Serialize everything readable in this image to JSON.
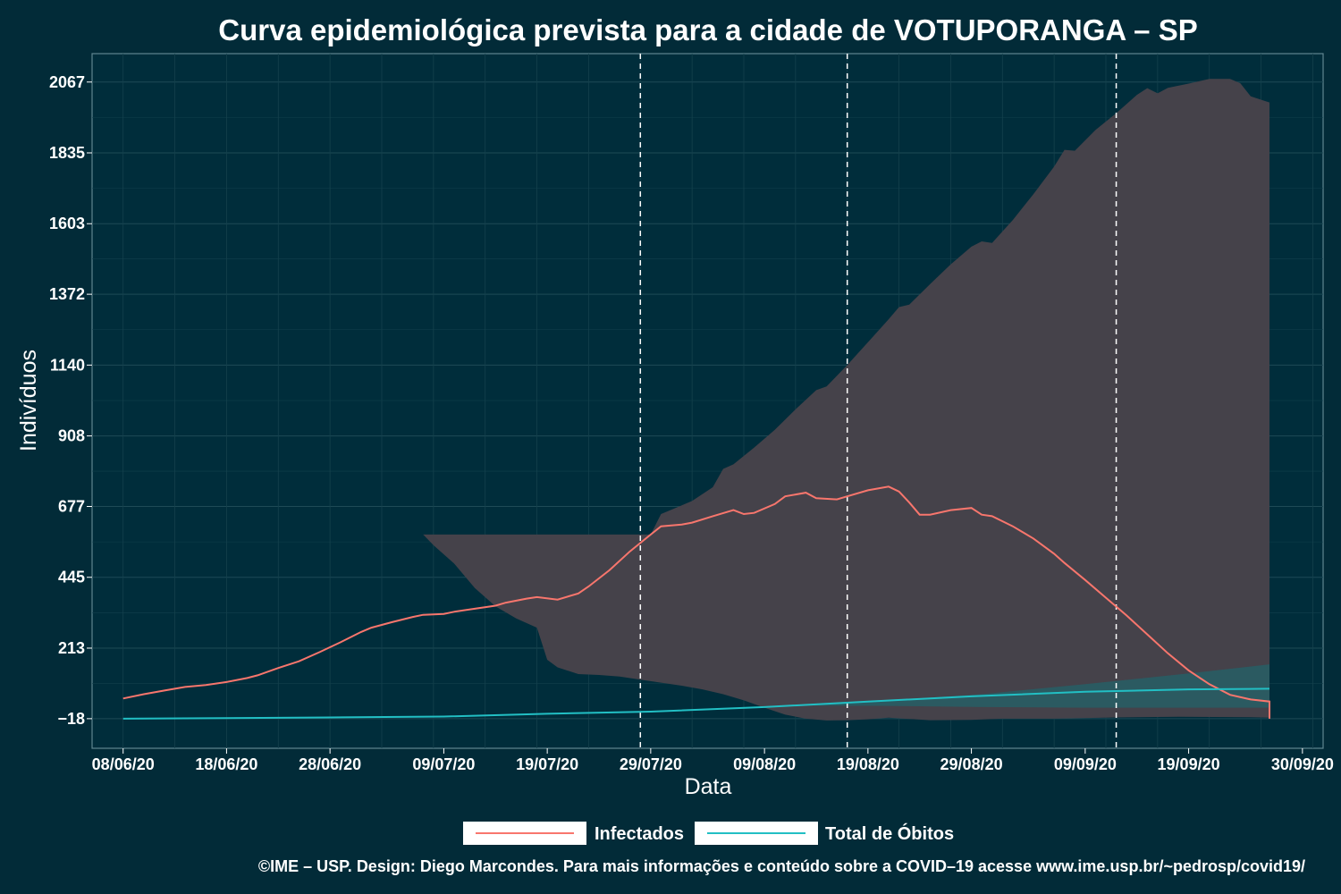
{
  "chart_data": {
    "type": "line",
    "title": "Curva epidemiológica prevista para a cidade de VOTUPORANGA – SP",
    "xlabel": "Data",
    "ylabel": "Indivíduos",
    "x_start": "2020-06-05",
    "x_end": "2020-10-02",
    "ylim": [
      -115,
      2160
    ],
    "grid": true,
    "yticks": [
      {
        "value": -18,
        "label": "−18"
      },
      {
        "value": 213,
        "label": "213"
      },
      {
        "value": 445,
        "label": "445"
      },
      {
        "value": 677,
        "label": "677"
      },
      {
        "value": 908,
        "label": "908"
      },
      {
        "value": 1140,
        "label": "1140"
      },
      {
        "value": 1372,
        "label": "1372"
      },
      {
        "value": 1603,
        "label": "1603"
      },
      {
        "value": 1835,
        "label": "1835"
      },
      {
        "value": 2067,
        "label": "2067"
      }
    ],
    "xticks": [
      {
        "date": "2020-06-08",
        "label": "08/06/20"
      },
      {
        "date": "2020-06-18",
        "label": "18/06/20"
      },
      {
        "date": "2020-06-28",
        "label": "28/06/20"
      },
      {
        "date": "2020-07-09",
        "label": "09/07/20"
      },
      {
        "date": "2020-07-19",
        "label": "19/07/20"
      },
      {
        "date": "2020-07-29",
        "label": "29/07/20"
      },
      {
        "date": "2020-08-09",
        "label": "09/08/20"
      },
      {
        "date": "2020-08-19",
        "label": "19/08/20"
      },
      {
        "date": "2020-08-29",
        "label": "29/08/20"
      },
      {
        "date": "2020-09-09",
        "label": "09/09/20"
      },
      {
        "date": "2020-09-19",
        "label": "19/09/20"
      },
      {
        "date": "2020-09-30",
        "label": "30/09/20"
      }
    ],
    "vlines": [
      "2020-07-28",
      "2020-08-17",
      "2020-09-12"
    ],
    "series": [
      {
        "name": "Infectados",
        "color": "#f8766d",
        "points": [
          [
            "2020-06-08",
            48
          ],
          [
            "2020-06-10",
            62
          ],
          [
            "2020-06-12",
            74
          ],
          [
            "2020-06-14",
            86
          ],
          [
            "2020-06-16",
            92
          ],
          [
            "2020-06-18",
            102
          ],
          [
            "2020-06-20",
            115
          ],
          [
            "2020-06-21",
            124
          ],
          [
            "2020-06-23",
            148
          ],
          [
            "2020-06-25",
            170
          ],
          [
            "2020-06-27",
            200
          ],
          [
            "2020-06-29",
            232
          ],
          [
            "2020-07-01",
            266
          ],
          [
            "2020-07-02",
            280
          ],
          [
            "2020-07-04",
            298
          ],
          [
            "2020-07-06",
            315
          ],
          [
            "2020-07-07",
            322
          ],
          [
            "2020-07-09",
            325
          ],
          [
            "2020-07-10",
            332
          ],
          [
            "2020-07-12",
            342
          ],
          [
            "2020-07-14",
            352
          ],
          [
            "2020-07-15",
            362
          ],
          [
            "2020-07-17",
            375
          ],
          [
            "2020-07-18",
            380
          ],
          [
            "2020-07-20",
            372
          ],
          [
            "2020-07-22",
            392
          ],
          [
            "2020-07-23",
            415
          ],
          [
            "2020-07-25",
            468
          ],
          [
            "2020-07-27",
            530
          ],
          [
            "2020-07-29",
            585
          ],
          [
            "2020-07-30",
            612
          ],
          [
            "2020-08-01",
            618
          ],
          [
            "2020-08-02",
            624
          ],
          [
            "2020-08-04",
            645
          ],
          [
            "2020-08-06",
            665
          ],
          [
            "2020-08-07",
            652
          ],
          [
            "2020-08-08",
            656
          ],
          [
            "2020-08-10",
            685
          ],
          [
            "2020-08-11",
            710
          ],
          [
            "2020-08-13",
            722
          ],
          [
            "2020-08-14",
            704
          ],
          [
            "2020-08-16",
            700
          ],
          [
            "2020-08-17",
            710
          ],
          [
            "2020-08-19",
            730
          ],
          [
            "2020-08-21",
            742
          ],
          [
            "2020-08-22",
            726
          ],
          [
            "2020-08-23",
            690
          ],
          [
            "2020-08-24",
            650
          ],
          [
            "2020-08-25",
            650
          ],
          [
            "2020-08-27",
            665
          ],
          [
            "2020-08-29",
            672
          ],
          [
            "2020-08-30",
            650
          ],
          [
            "2020-08-31",
            645
          ],
          [
            "2020-09-02",
            612
          ],
          [
            "2020-09-04",
            572
          ],
          [
            "2020-09-06",
            522
          ],
          [
            "2020-09-07",
            492
          ],
          [
            "2020-09-09",
            436
          ],
          [
            "2020-09-11",
            378
          ],
          [
            "2020-09-13",
            320
          ],
          [
            "2020-09-15",
            258
          ],
          [
            "2020-09-17",
            196
          ],
          [
            "2020-09-19",
            140
          ],
          [
            "2020-09-21",
            95
          ],
          [
            "2020-09-23",
            60
          ],
          [
            "2020-09-25",
            45
          ],
          [
            "2020-09-27",
            38
          ],
          [
            "2020-09-29",
            20
          ],
          [
            "2020-10-01",
            5
          ],
          [
            "2020-10-03",
            -7
          ],
          [
            "2020-10-06",
            -18
          ]
        ]
      },
      {
        "name": "Total de Óbitos",
        "color": "#22bfc4",
        "points": [
          [
            "2020-06-08",
            -18
          ],
          [
            "2020-06-18",
            -16
          ],
          [
            "2020-06-28",
            -14
          ],
          [
            "2020-07-09",
            -11
          ],
          [
            "2020-07-19",
            -2
          ],
          [
            "2020-07-29",
            5
          ],
          [
            "2020-08-09",
            20
          ],
          [
            "2020-08-19",
            38
          ],
          [
            "2020-08-29",
            55
          ],
          [
            "2020-09-09",
            70
          ],
          [
            "2020-09-19",
            78
          ],
          [
            "2020-09-30",
            80
          ],
          [
            "2020-10-06",
            80
          ]
        ]
      }
    ],
    "bands": [
      {
        "name": "Infectados",
        "color": "#45424a",
        "upper": [
          [
            "2020-07-29",
            585
          ],
          [
            "2020-07-30",
            652
          ],
          [
            "2020-08-02",
            695
          ],
          [
            "2020-08-04",
            740
          ],
          [
            "2020-08-05",
            800
          ],
          [
            "2020-08-06",
            815
          ],
          [
            "2020-08-08",
            870
          ],
          [
            "2020-08-10",
            928
          ],
          [
            "2020-08-12",
            995
          ],
          [
            "2020-08-14",
            1058
          ],
          [
            "2020-08-15",
            1070
          ],
          [
            "2020-08-17",
            1140
          ],
          [
            "2020-08-19",
            1215
          ],
          [
            "2020-08-21",
            1290
          ],
          [
            "2020-08-22",
            1330
          ],
          [
            "2020-08-23",
            1338
          ],
          [
            "2020-08-25",
            1405
          ],
          [
            "2020-08-27",
            1470
          ],
          [
            "2020-08-29",
            1528
          ],
          [
            "2020-08-30",
            1545
          ],
          [
            "2020-08-31",
            1540
          ],
          [
            "2020-09-02",
            1615
          ],
          [
            "2020-09-04",
            1700
          ],
          [
            "2020-09-06",
            1790
          ],
          [
            "2020-09-07",
            1845
          ],
          [
            "2020-09-08",
            1842
          ],
          [
            "2020-09-10",
            1910
          ],
          [
            "2020-09-12",
            1965
          ],
          [
            "2020-09-14",
            2025
          ],
          [
            "2020-09-15",
            2047
          ],
          [
            "2020-09-16",
            2030
          ],
          [
            "2020-09-17",
            2048
          ],
          [
            "2020-09-19",
            2062
          ],
          [
            "2020-09-21",
            2077
          ],
          [
            "2020-09-23",
            2077
          ],
          [
            "2020-09-24",
            2063
          ],
          [
            "2020-09-25",
            2020
          ],
          [
            "2020-09-27",
            2000
          ],
          [
            "2020-09-29",
            1968
          ],
          [
            "2020-10-01",
            1935
          ],
          [
            "2020-10-02",
            1905
          ],
          [
            "2020-10-03",
            1865
          ],
          [
            "2020-10-04",
            1800
          ],
          [
            "2020-10-06",
            1740
          ],
          [
            "2020-10-08",
            1670
          ],
          [
            "2020-10-10",
            1595
          ],
          [
            "2020-10-12",
            1510
          ],
          [
            "2020-10-13",
            1448
          ],
          [
            "2020-10-14",
            1420
          ]
        ],
        "lower": [
          [
            "2020-10-14",
            -18
          ],
          [
            "2020-10-08",
            -17
          ],
          [
            "2020-10-02",
            -15
          ],
          [
            "2020-09-25",
            -13
          ],
          [
            "2020-09-18",
            -12
          ],
          [
            "2020-09-12",
            -14
          ],
          [
            "2020-09-06",
            -18
          ],
          [
            "2020-09-01",
            -18
          ],
          [
            "2020-08-29",
            -22
          ],
          [
            "2020-08-25",
            -23
          ],
          [
            "2020-08-21",
            -15
          ],
          [
            "2020-08-19",
            -20
          ],
          [
            "2020-08-17",
            -23
          ],
          [
            "2020-08-15",
            -24
          ],
          [
            "2020-08-13",
            -18
          ],
          [
            "2020-08-11",
            -5
          ],
          [
            "2020-08-09",
            18
          ],
          [
            "2020-08-07",
            42
          ],
          [
            "2020-08-05",
            62
          ],
          [
            "2020-08-03",
            78
          ],
          [
            "2020-08-01",
            90
          ],
          [
            "2020-07-30",
            100
          ],
          [
            "2020-07-28",
            110
          ],
          [
            "2020-07-26",
            120
          ],
          [
            "2020-07-24",
            125
          ],
          [
            "2020-07-22",
            128
          ],
          [
            "2020-07-20",
            150
          ],
          [
            "2020-07-19",
            175
          ],
          [
            "2020-07-18",
            280
          ],
          [
            "2020-07-16",
            310
          ],
          [
            "2020-07-14",
            350
          ],
          [
            "2020-07-12",
            410
          ],
          [
            "2020-07-10",
            490
          ],
          [
            "2020-07-08",
            550
          ],
          [
            "2020-07-07",
            585
          ]
        ]
      },
      {
        "name": "Total de Óbitos",
        "color": "#275e65",
        "upper": [
          [
            "2020-08-11",
            25
          ],
          [
            "2020-08-20",
            40
          ],
          [
            "2020-08-30",
            62
          ],
          [
            "2020-09-09",
            95
          ],
          [
            "2020-09-19",
            130
          ],
          [
            "2020-09-29",
            160
          ],
          [
            "2020-10-08",
            190
          ],
          [
            "2020-10-14",
            220
          ]
        ],
        "lower": [
          [
            "2020-10-14",
            18
          ],
          [
            "2020-09-29",
            18
          ],
          [
            "2020-09-19",
            18
          ],
          [
            "2020-09-09",
            18
          ],
          [
            "2020-08-30",
            20
          ],
          [
            "2020-08-20",
            24
          ],
          [
            "2020-08-11",
            25
          ]
        ]
      }
    ],
    "legend": {
      "position": "bottom",
      "items": [
        {
          "label": "Infectados",
          "color": "#f8766d"
        },
        {
          "label": "Total de Óbitos",
          "color": "#22bfc4"
        }
      ]
    }
  },
  "caption": "©IME – USP. Design: Diego Marcondes. Para mais informações e conteúdo sobre a COVID–19 acesse www.ime.usp.br/~pedrosp/covid19/"
}
